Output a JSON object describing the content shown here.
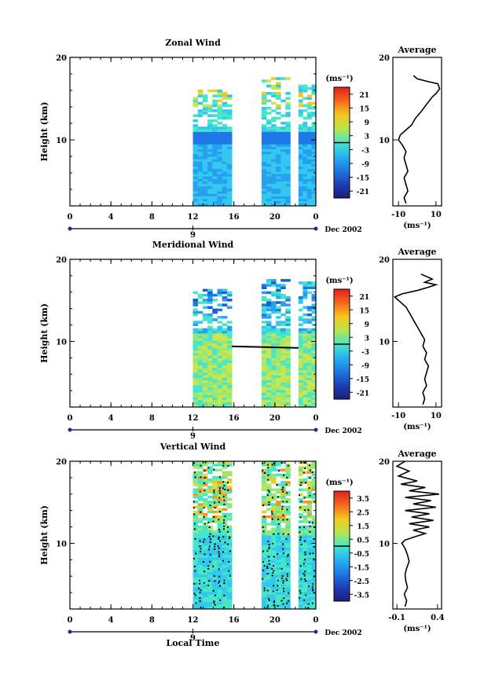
{
  "units_label": "(ms⁻¹)",
  "date_label": "Dec 2002",
  "xlabel": "Local Time",
  "chart_data": [
    {
      "type": "heatmap",
      "title": "Zonal Wind",
      "ylabel": "Height (km)",
      "ylim": [
        2,
        20
      ],
      "yticks": [
        "10",
        "20"
      ],
      "xticks": [
        "0",
        "4",
        "8",
        "12",
        "16",
        "20",
        "0"
      ],
      "day_marker": "9",
      "data_blocks_local_time": [
        [
          12,
          15.8
        ],
        [
          18.7,
          21.5
        ],
        [
          22.3,
          24
        ]
      ],
      "colorbar": {
        "ticks": [
          "21",
          "15",
          "9",
          "3",
          "-3",
          "-9",
          "-15",
          "-21"
        ],
        "zero_line": 0
      },
      "profile": {
        "title": "Average",
        "xticks": [
          "-10",
          "10"
        ],
        "xlim": [
          -13,
          13
        ],
        "xlabel": "(ms⁻¹)",
        "points": [
          [
            -6,
            2.3
          ],
          [
            -7,
            3
          ],
          [
            -5,
            3.8
          ],
          [
            -6,
            4.6
          ],
          [
            -7,
            5.4
          ],
          [
            -5,
            6.2
          ],
          [
            -6,
            7
          ],
          [
            -7,
            7.8
          ],
          [
            -6,
            8.6
          ],
          [
            -8,
            9.4
          ],
          [
            -10,
            10
          ],
          [
            -9,
            10.6
          ],
          [
            -6,
            11.2
          ],
          [
            -3,
            11.8
          ],
          [
            -1,
            12.6
          ],
          [
            2,
            13.4
          ],
          [
            4,
            14
          ],
          [
            6,
            14.6
          ],
          [
            8,
            15.2
          ],
          [
            10,
            15.6
          ],
          [
            12,
            16.2
          ],
          [
            11,
            16.8
          ],
          [
            5,
            17.1
          ],
          [
            0,
            17.4
          ],
          [
            -2,
            17.8
          ]
        ]
      }
    },
    {
      "type": "heatmap",
      "title": "Meridional Wind",
      "ylabel": "Height (km)",
      "ylim": [
        2,
        20
      ],
      "yticks": [
        "10",
        "20"
      ],
      "xticks": [
        "0",
        "4",
        "8",
        "12",
        "16",
        "20",
        "0"
      ],
      "day_marker": "9",
      "data_blocks_local_time": [
        [
          12,
          15.8
        ],
        [
          18.7,
          21.5
        ],
        [
          22.3,
          24
        ]
      ],
      "colorbar": {
        "ticks": [
          "21",
          "15",
          "9",
          "3",
          "-3",
          "-9",
          "-15",
          "-21"
        ],
        "zero_line": 0
      },
      "profile": {
        "title": "Average",
        "xticks": [
          "-10",
          "10"
        ],
        "xlim": [
          -13,
          13
        ],
        "xlabel": "(ms⁻¹)",
        "points": [
          [
            3,
            2.3
          ],
          [
            4,
            3
          ],
          [
            3,
            3.8
          ],
          [
            5,
            4.6
          ],
          [
            4,
            5.4
          ],
          [
            5,
            6.2
          ],
          [
            6,
            7
          ],
          [
            4,
            7.8
          ],
          [
            5,
            8.6
          ],
          [
            3,
            9.4
          ],
          [
            4,
            10.2
          ],
          [
            2,
            11
          ],
          [
            0,
            11.8
          ],
          [
            -2,
            12.6
          ],
          [
            -4,
            13.4
          ],
          [
            -6,
            14.2
          ],
          [
            -9,
            14.8
          ],
          [
            -12,
            15.4
          ],
          [
            -8,
            15.8
          ],
          [
            0,
            16.2
          ],
          [
            6,
            16.6
          ],
          [
            10,
            16.9
          ],
          [
            4,
            17.2
          ],
          [
            8,
            17.6
          ],
          [
            2,
            18.2
          ]
        ]
      }
    },
    {
      "type": "heatmap",
      "title": "Vertical Wind",
      "ylabel": "Height (km)",
      "ylim": [
        2,
        20
      ],
      "yticks": [
        "10",
        "20"
      ],
      "xticks": [
        "0",
        "4",
        "8",
        "12",
        "16",
        "20",
        "0"
      ],
      "day_marker": "9",
      "data_blocks_local_time": [
        [
          12,
          15.8
        ],
        [
          18.7,
          21.5
        ],
        [
          22.3,
          24
        ]
      ],
      "colorbar": {
        "ticks": [
          "3.5",
          "2.5",
          "1.5",
          "0.5",
          "-0.5",
          "-1.5",
          "-2.5",
          "-3.5"
        ],
        "zero_line": 0
      },
      "profile": {
        "title": "Average",
        "xticks": [
          "-0.1",
          "0.4"
        ],
        "xlim": [
          -0.15,
          0.45
        ],
        "xlabel": "(ms⁻¹)",
        "points": [
          [
            0.0,
            2.3
          ],
          [
            0.02,
            3
          ],
          [
            -0.01,
            3.8
          ],
          [
            0.03,
            4.6
          ],
          [
            0.01,
            5.4
          ],
          [
            0.0,
            6.2
          ],
          [
            0.02,
            7
          ],
          [
            0.05,
            7.8
          ],
          [
            0.03,
            8.6
          ],
          [
            0.0,
            9.4
          ],
          [
            -0.04,
            10
          ],
          [
            0.0,
            10.4
          ],
          [
            0.12,
            10.8
          ],
          [
            0.25,
            11.2
          ],
          [
            0.1,
            11.6
          ],
          [
            0.3,
            12
          ],
          [
            0.05,
            12.4
          ],
          [
            0.35,
            12.8
          ],
          [
            0.08,
            13.2
          ],
          [
            0.3,
            13.6
          ],
          [
            0.0,
            14
          ],
          [
            0.38,
            14.4
          ],
          [
            0.1,
            14.8
          ],
          [
            0.32,
            15.2
          ],
          [
            0.0,
            15.6
          ],
          [
            0.42,
            16
          ],
          [
            0.05,
            16.4
          ],
          [
            0.25,
            16.8
          ],
          [
            -0.05,
            17.2
          ],
          [
            0.15,
            17.6
          ],
          [
            -0.08,
            18.2
          ],
          [
            0.05,
            18.8
          ],
          [
            -0.1,
            19.4
          ],
          [
            0.0,
            20
          ]
        ]
      }
    }
  ]
}
